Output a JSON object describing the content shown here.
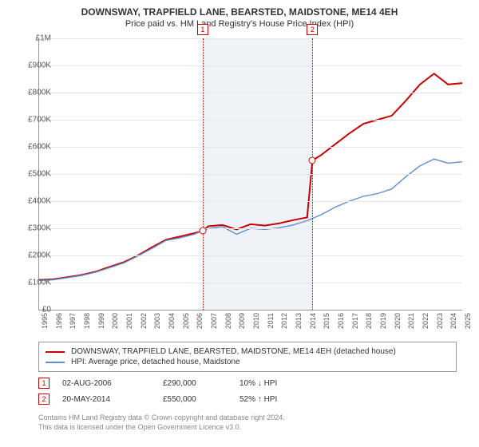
{
  "title": "DOWNSWAY, TRAPFIELD LANE, BEARSTED, MAIDSTONE, ME14 4EH",
  "subtitle": "Price paid vs. HM Land Registry's House Price Index (HPI)",
  "chart": {
    "type": "line",
    "x_start": 1995,
    "x_end": 2025,
    "x_tick_step": 1,
    "y_min": 0,
    "y_max": 1000000,
    "y_tick_step": 100000,
    "y_tick_labels": [
      "£0",
      "£100K",
      "£200K",
      "£300K",
      "£400K",
      "£500K",
      "£600K",
      "£700K",
      "£800K",
      "£900K",
      "£1M"
    ],
    "grid_color": "#e6e6e6",
    "axis_color": "#999999",
    "background_color": "#ffffff",
    "shade_color": "#e8eef5",
    "shade_start": 2006.6,
    "shade_end": 2014.4,
    "marker_color": "#cc0000",
    "series": [
      {
        "name": "DOWNSWAY, TRAPFIELD LANE, BEARSTED, MAIDSTONE, ME14 4EH (detached house)",
        "color": "#cc0000",
        "width": 2,
        "points": [
          [
            1995,
            110000
          ],
          [
            1996,
            112000
          ],
          [
            1997,
            120000
          ],
          [
            1998,
            128000
          ],
          [
            1999,
            140000
          ],
          [
            2000,
            158000
          ],
          [
            2001,
            175000
          ],
          [
            2002,
            200000
          ],
          [
            2003,
            230000
          ],
          [
            2004,
            258000
          ],
          [
            2005,
            270000
          ],
          [
            2006,
            282000
          ],
          [
            2006.6,
            290000
          ],
          [
            2007,
            308000
          ],
          [
            2008,
            312000
          ],
          [
            2009,
            296000
          ],
          [
            2010,
            315000
          ],
          [
            2011,
            310000
          ],
          [
            2012,
            318000
          ],
          [
            2013,
            330000
          ],
          [
            2014,
            340000
          ],
          [
            2014.38,
            550000
          ],
          [
            2015,
            570000
          ],
          [
            2016,
            610000
          ],
          [
            2017,
            650000
          ],
          [
            2018,
            685000
          ],
          [
            2019,
            700000
          ],
          [
            2020,
            715000
          ],
          [
            2021,
            770000
          ],
          [
            2022,
            830000
          ],
          [
            2023,
            870000
          ],
          [
            2024,
            830000
          ],
          [
            2025,
            835000
          ]
        ]
      },
      {
        "name": "HPI: Average price, detached house, Maidstone",
        "color": "#5b8fd6",
        "width": 1.4,
        "points": [
          [
            1995,
            108000
          ],
          [
            1996,
            110000
          ],
          [
            1997,
            118000
          ],
          [
            1998,
            126000
          ],
          [
            1999,
            138000
          ],
          [
            2000,
            155000
          ],
          [
            2001,
            172000
          ],
          [
            2002,
            198000
          ],
          [
            2003,
            226000
          ],
          [
            2004,
            255000
          ],
          [
            2005,
            265000
          ],
          [
            2006,
            278000
          ],
          [
            2007,
            300000
          ],
          [
            2008,
            306000
          ],
          [
            2009,
            278000
          ],
          [
            2010,
            300000
          ],
          [
            2011,
            296000
          ],
          [
            2012,
            302000
          ],
          [
            2013,
            312000
          ],
          [
            2014,
            328000
          ],
          [
            2015,
            350000
          ],
          [
            2016,
            378000
          ],
          [
            2017,
            400000
          ],
          [
            2018,
            418000
          ],
          [
            2019,
            428000
          ],
          [
            2020,
            445000
          ],
          [
            2021,
            490000
          ],
          [
            2022,
            530000
          ],
          [
            2023,
            555000
          ],
          [
            2024,
            540000
          ],
          [
            2025,
            545000
          ]
        ]
      }
    ],
    "sale_markers": [
      {
        "index": "1",
        "x": 2006.6,
        "y": 290000
      },
      {
        "index": "2",
        "x": 2014.38,
        "y": 550000
      }
    ]
  },
  "legend": [
    {
      "color": "#cc0000",
      "label": "DOWNSWAY, TRAPFIELD LANE, BEARSTED, MAIDSTONE, ME14 4EH (detached house)"
    },
    {
      "color": "#5b8fd6",
      "label": "HPI: Average price, detached house, Maidstone"
    }
  ],
  "sales": [
    {
      "index": "1",
      "date": "02-AUG-2006",
      "price": "£290,000",
      "delta": "10% ↓ HPI"
    },
    {
      "index": "2",
      "date": "20-MAY-2014",
      "price": "£550,000",
      "delta": "52% ↑ HPI"
    }
  ],
  "footer_line1": "Contains HM Land Registry data © Crown copyright and database right 2024.",
  "footer_line2": "This data is licensed under the Open Government Licence v3.0."
}
